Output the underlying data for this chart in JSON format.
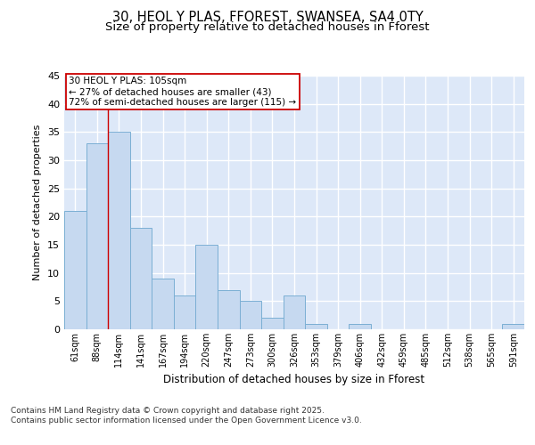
{
  "title_line1": "30, HEOL Y PLAS, FFOREST, SWANSEA, SA4 0TY",
  "title_line2": "Size of property relative to detached houses in Fforest",
  "xlabel": "Distribution of detached houses by size in Fforest",
  "ylabel": "Number of detached properties",
  "categories": [
    "61sqm",
    "88sqm",
    "114sqm",
    "141sqm",
    "167sqm",
    "194sqm",
    "220sqm",
    "247sqm",
    "273sqm",
    "300sqm",
    "326sqm",
    "353sqm",
    "379sqm",
    "406sqm",
    "432sqm",
    "459sqm",
    "485sqm",
    "512sqm",
    "538sqm",
    "565sqm",
    "591sqm"
  ],
  "values": [
    21,
    33,
    35,
    18,
    9,
    6,
    15,
    7,
    5,
    2,
    6,
    1,
    0,
    1,
    0,
    0,
    0,
    0,
    0,
    0,
    1
  ],
  "bar_color": "#c6d9f0",
  "bar_edge_color": "#7bafd4",
  "background_color": "#dde8f8",
  "grid_color": "#ffffff",
  "ylim": [
    0,
    45
  ],
  "yticks": [
    0,
    5,
    10,
    15,
    20,
    25,
    30,
    35,
    40,
    45
  ],
  "annotation_text": "30 HEOL Y PLAS: 105sqm\n← 27% of detached houses are smaller (43)\n72% of semi-detached houses are larger (115) →",
  "annotation_box_color": "#ffffff",
  "annotation_box_edge_color": "#cc0000",
  "red_line_x": 1.5,
  "footnote": "Contains HM Land Registry data © Crown copyright and database right 2025.\nContains public sector information licensed under the Open Government Licence v3.0.",
  "title_fontsize": 10.5,
  "subtitle_fontsize": 9.5,
  "annotation_fontsize": 7.5,
  "footnote_fontsize": 6.5,
  "ylabel_fontsize": 8,
  "xlabel_fontsize": 8.5,
  "xtick_fontsize": 7,
  "ytick_fontsize": 8
}
